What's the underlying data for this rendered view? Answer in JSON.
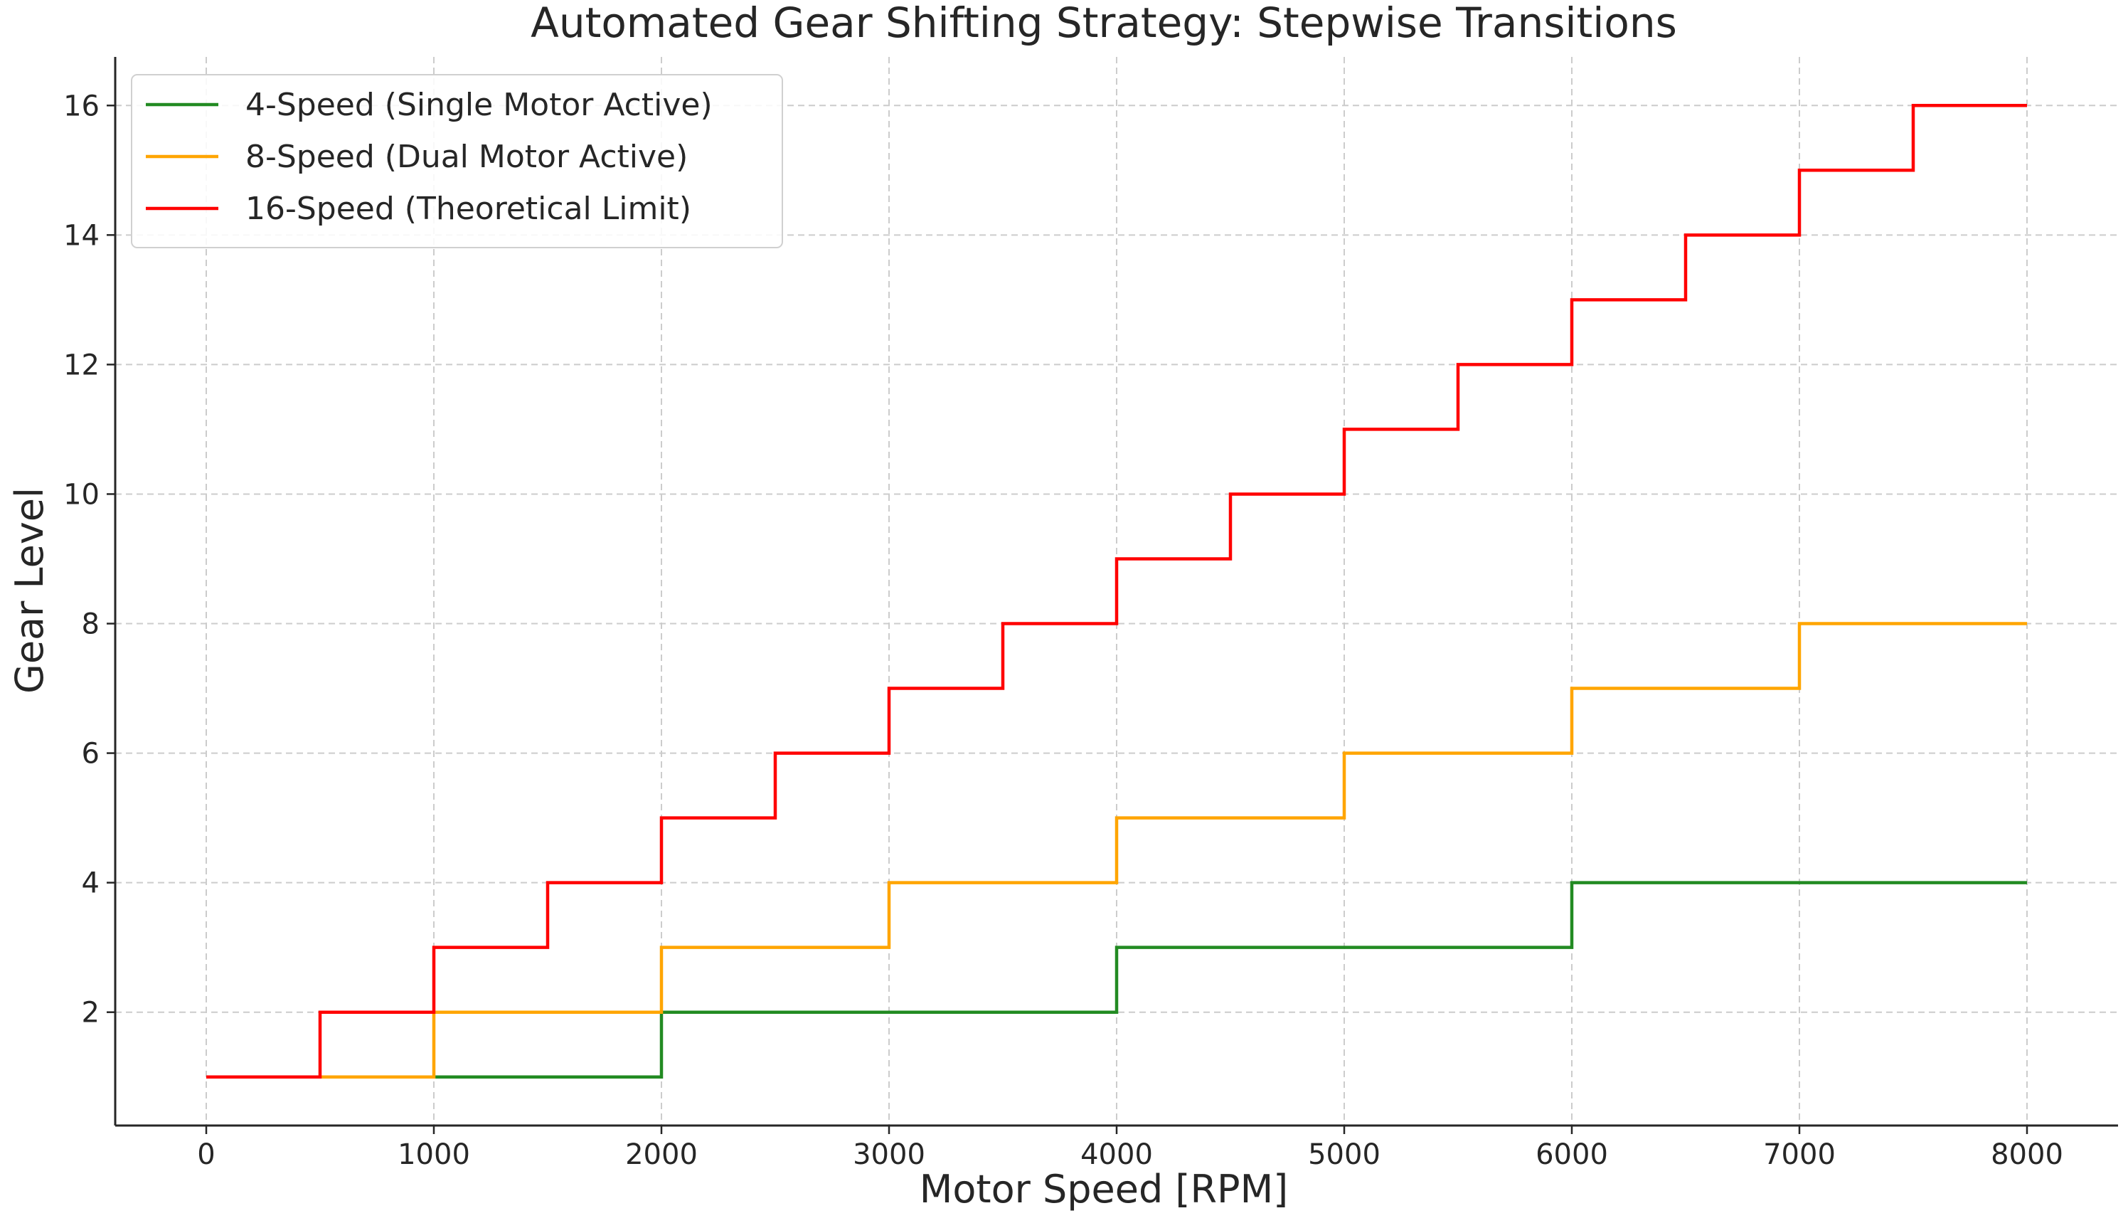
{
  "chart_data": {
    "type": "line",
    "step": "post",
    "title": "Automated Gear Shifting Strategy: Stepwise Transitions",
    "xlabel": "Motor Speed [RPM]",
    "ylabel": "Gear Level",
    "xlim": [
      -400,
      8400
    ],
    "ylim": [
      0.25,
      16.75
    ],
    "xticks": [
      0,
      1000,
      2000,
      3000,
      4000,
      5000,
      6000,
      7000,
      8000
    ],
    "yticks": [
      2,
      4,
      6,
      8,
      10,
      12,
      14,
      16
    ],
    "grid": true,
    "legend_position": "top-left",
    "series": [
      {
        "name": "4-Speed (Single Motor Active)",
        "color": "#228B22",
        "x": [
          1000,
          2000,
          4000,
          6000,
          8000
        ],
        "y": [
          1,
          2,
          3,
          4,
          4
        ]
      },
      {
        "name": "8-Speed (Dual Motor Active)",
        "color": "#FFA500",
        "x": [
          500,
          1000,
          2000,
          3000,
          4000,
          5000,
          6000,
          7000,
          8000
        ],
        "y": [
          1,
          2,
          3,
          4,
          5,
          6,
          7,
          8,
          8
        ]
      },
      {
        "name": "16-Speed (Theoretical Limit)",
        "color": "#FF0000",
        "x": [
          0,
          500,
          1000,
          1500,
          2000,
          2500,
          3000,
          3500,
          4000,
          4500,
          5000,
          5500,
          6000,
          6500,
          7000,
          7500,
          8000
        ],
        "y": [
          1,
          2,
          3,
          4,
          5,
          6,
          7,
          8,
          9,
          10,
          11,
          12,
          13,
          14,
          15,
          16,
          16
        ]
      }
    ]
  }
}
